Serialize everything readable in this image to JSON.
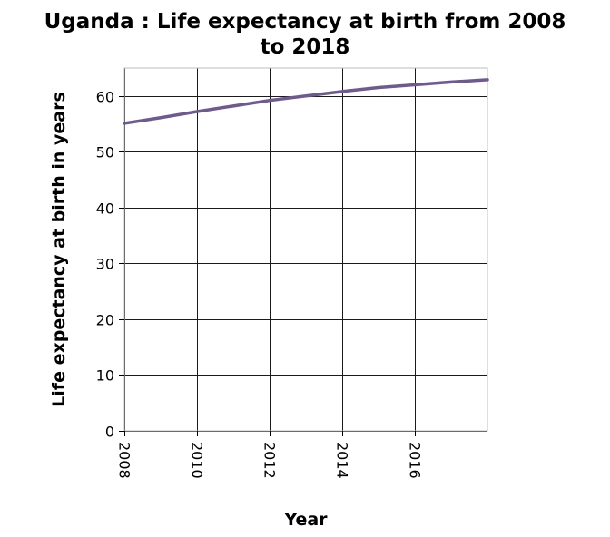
{
  "chart_data": {
    "type": "line",
    "title_lines": [
      "Uganda : Life expectancy at birth from 2008",
      "to 2018"
    ],
    "xlabel": "Year",
    "ylabel": "Life expectancy at birth in years",
    "xlim": [
      2008,
      2018
    ],
    "ylim": [
      0,
      65
    ],
    "x_ticks": [
      2008,
      2010,
      2012,
      2014,
      2016
    ],
    "y_ticks": [
      0,
      10,
      20,
      30,
      40,
      50,
      60
    ],
    "grid": true,
    "series": [
      {
        "color": "#6e5a91",
        "x": [
          2008,
          2009,
          2010,
          2011,
          2012,
          2013,
          2014,
          2015,
          2016,
          2017,
          2018
        ],
        "y": [
          55.1,
          56.1,
          57.2,
          58.2,
          59.2,
          60.0,
          60.8,
          61.5,
          62.0,
          62.5,
          62.9
        ]
      }
    ]
  }
}
